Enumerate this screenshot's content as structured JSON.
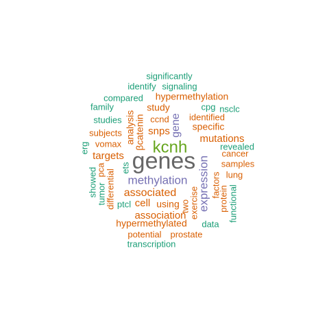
{
  "colors": {
    "teal": "#1b9e77",
    "orange": "#d95f02",
    "purple": "#7570b3",
    "green": "#66a61e",
    "gray": "#666666"
  },
  "words": {
    "genes": "genes",
    "kcnh": "kcnh",
    "methylation": "methylation",
    "expression": "expression",
    "gene": "gene",
    "associated": "associated",
    "association": "association",
    "mutations": "mutations",
    "hypermethylation": "hypermethylation",
    "hypermethylated": "hypermethylated",
    "snps": "snps",
    "targets": "targets",
    "cell": "cell",
    "using": "using",
    "analysis": "analysis",
    "catenin": "βcatenin",
    "study": "study",
    "specific": "specific",
    "identified": "identified",
    "vomax": "vomax",
    "subjects": "subjects",
    "cancer": "cancer",
    "samples": "samples",
    "lung": "lung",
    "factors": "factors",
    "protein": "protein",
    "exercise": "exercise",
    "two": "two",
    "potential": "potential",
    "prostate": "prostate",
    "ccnd": "ccnd",
    "differential": "differential",
    "pca": "pca",
    "significantly": "significantly",
    "identify": "identify",
    "signaling": "signaling",
    "compared": "compared",
    "family": "family",
    "studies": "studies",
    "cpg": "cpg",
    "nsclc": "nsclc",
    "revealed": "revealed",
    "erg": "erg",
    "ets": "ets",
    "showed": "showed",
    "tumor": "tumor",
    "ptcl": "ptcl",
    "functional": "functional",
    "data": "data",
    "transcription": "transcription"
  }
}
